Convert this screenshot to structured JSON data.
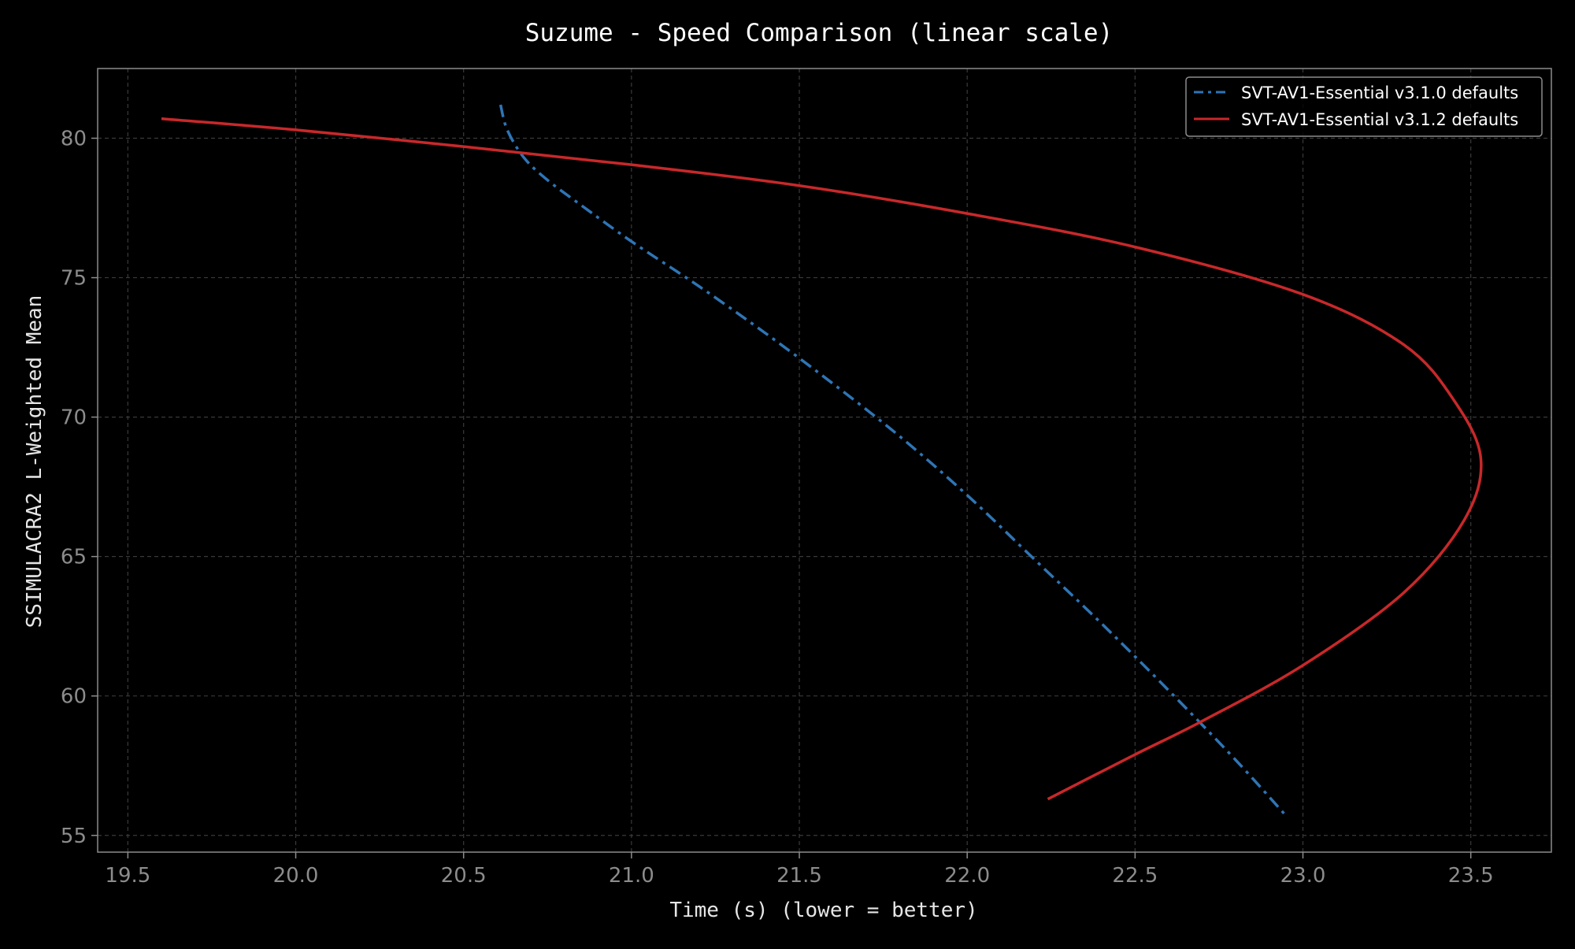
{
  "chart_data": {
    "type": "line",
    "title": "Suzume - Speed Comparison (linear scale)",
    "xlabel": "Time (s) (lower = better)",
    "ylabel": "SSIMULACRA2 L-Weighted Mean",
    "xlim": [
      19.41,
      23.74
    ],
    "ylim": [
      54.4,
      82.5
    ],
    "x_ticks": [
      19.5,
      20.0,
      20.5,
      21.0,
      21.5,
      22.0,
      22.5,
      23.0,
      23.5
    ],
    "x_tick_labels": [
      "19.5",
      "20.0",
      "20.5",
      "21.0",
      "21.5",
      "22.0",
      "22.5",
      "23.0",
      "23.5"
    ],
    "y_ticks": [
      55,
      60,
      65,
      70,
      75,
      80
    ],
    "y_tick_labels": [
      "55",
      "60",
      "65",
      "70",
      "75",
      "80"
    ],
    "grid": true,
    "legend_position": "top-right",
    "background_color": "#000000",
    "text_color": "#ffffff",
    "tick_color": "#8c8c8c",
    "grid_color": "#3a3a3a",
    "series": [
      {
        "name": "SVT-AV1-Essential v3.1.0 defaults",
        "color": "#2e75b6",
        "line_style": "dashdot",
        "points": [
          [
            20.61,
            81.2
          ],
          [
            20.63,
            80.3
          ],
          [
            20.68,
            79.3
          ],
          [
            20.75,
            78.5
          ],
          [
            20.85,
            77.6
          ],
          [
            21.0,
            76.3
          ],
          [
            21.2,
            74.7
          ],
          [
            21.4,
            73.0
          ],
          [
            21.6,
            71.2
          ],
          [
            21.8,
            69.3
          ],
          [
            22.0,
            67.2
          ],
          [
            22.2,
            64.9
          ],
          [
            22.4,
            62.6
          ],
          [
            22.6,
            60.2
          ],
          [
            22.8,
            57.7
          ],
          [
            22.95,
            55.7
          ]
        ]
      },
      {
        "name": "SVT-AV1-Essential v3.1.2 defaults",
        "color": "#c8282a",
        "line_style": "solid",
        "points": [
          [
            19.6,
            80.7
          ],
          [
            20.0,
            80.3
          ],
          [
            20.5,
            79.7
          ],
          [
            21.0,
            79.05
          ],
          [
            21.5,
            78.3
          ],
          [
            22.0,
            77.3
          ],
          [
            22.5,
            76.1
          ],
          [
            23.0,
            74.4
          ],
          [
            23.3,
            72.6
          ],
          [
            23.45,
            70.6
          ],
          [
            23.53,
            68.5
          ],
          [
            23.48,
            66.3
          ],
          [
            23.3,
            63.7
          ],
          [
            23.0,
            61.1
          ],
          [
            22.7,
            59.1
          ],
          [
            22.5,
            57.9
          ],
          [
            22.24,
            56.3
          ]
        ]
      }
    ]
  }
}
